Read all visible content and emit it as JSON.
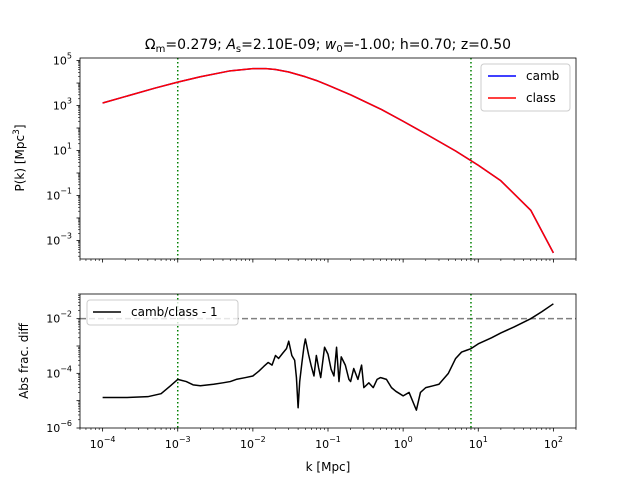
{
  "chart_data": [
    {
      "type": "line",
      "title": "Ω_m=0.279; A_s=2.10E-09; w_0=-1.00; h=0.70; z=0.50",
      "title_parts": {
        "omega": "Ω",
        "omega_sub": "m",
        "omega_val": "=0.279; ",
        "as": "A",
        "as_sub": "s",
        "as_val": "=2.10E-09; ",
        "w": "w",
        "w_sub": "0",
        "w_val": "=-1.00; h=0.70; z=0.50"
      },
      "ylabel": "P(k) [Mpc",
      "ylabel_sup": "3",
      "ylabel_end": "]",
      "xscale": "log",
      "yscale": "log",
      "xlim": [
        5e-05,
        200
      ],
      "ylim": [
        0.00015,
        130000
      ],
      "yticks": [
        {
          "v": 0.001,
          "base": "10",
          "exp": "−3"
        },
        {
          "v": 0.1,
          "base": "10",
          "exp": "−1"
        },
        {
          "v": 10,
          "base": "10",
          "exp": "1"
        },
        {
          "v": 1000,
          "base": "10",
          "exp": "3"
        },
        {
          "v": 100000,
          "base": "10",
          "exp": "5"
        }
      ],
      "vlines": [
        0.001,
        8.0
      ],
      "vline_color": "#008000",
      "legend_placement": "top-right",
      "series": [
        {
          "name": "camb",
          "color": "#0000ff",
          "x": [
            0.0001,
            0.0002,
            0.0005,
            0.001,
            0.002,
            0.005,
            0.01,
            0.015,
            0.02,
            0.03,
            0.05,
            0.07,
            0.1,
            0.2,
            0.5,
            1,
            2,
            5,
            10,
            20,
            50,
            100
          ],
          "y": [
            1300,
            2500,
            6000,
            11000,
            19000,
            35000,
            44000,
            44000,
            40000,
            31000,
            19000,
            13000,
            8000,
            3000,
            700,
            200,
            55,
            9.5,
            2.2,
            0.45,
            0.022,
            0.00028
          ]
        },
        {
          "name": "class",
          "color": "#ff0000",
          "x": [
            0.0001,
            0.0002,
            0.0005,
            0.001,
            0.002,
            0.005,
            0.01,
            0.015,
            0.02,
            0.03,
            0.05,
            0.07,
            0.1,
            0.2,
            0.5,
            1,
            2,
            5,
            10,
            20,
            50,
            100
          ],
          "y": [
            1300,
            2500,
            6000,
            11000,
            19000,
            35000,
            44000,
            44000,
            40000,
            31000,
            19000,
            13000,
            8000,
            3000,
            700,
            200,
            55,
            9.5,
            2.2,
            0.45,
            0.022,
            0.00028
          ]
        }
      ]
    },
    {
      "type": "line",
      "xlabel": "k [Mpc]",
      "ylabel": "Abs frac. diff",
      "xscale": "log",
      "yscale": "log",
      "xlim": [
        5e-05,
        200
      ],
      "ylim": [
        1e-06,
        0.08
      ],
      "xticks": [
        {
          "v": 0.0001,
          "base": "10",
          "exp": "−4"
        },
        {
          "v": 0.001,
          "base": "10",
          "exp": "−3"
        },
        {
          "v": 0.01,
          "base": "10",
          "exp": "−2"
        },
        {
          "v": 0.1,
          "base": "10",
          "exp": "−1"
        },
        {
          "v": 1,
          "base": "10",
          "exp": "0"
        },
        {
          "v": 10,
          "base": "10",
          "exp": "1"
        },
        {
          "v": 100,
          "base": "10",
          "exp": "2"
        }
      ],
      "yticks": [
        {
          "v": 1e-06,
          "base": "10",
          "exp": "−6"
        },
        {
          "v": 0.0001,
          "base": "10",
          "exp": "−4"
        },
        {
          "v": 0.01,
          "base": "10",
          "exp": "−2"
        }
      ],
      "vlines": [
        0.001,
        8.0
      ],
      "vline_color": "#008000",
      "hline": 0.01,
      "hline_color": "#808080",
      "legend_placement": "top-left",
      "series": [
        {
          "name": "camb/class - 1",
          "color": "#000000",
          "x": [
            0.0001,
            0.0002,
            0.0004,
            0.0006,
            0.0008,
            0.001,
            0.0013,
            0.0016,
            0.002,
            0.003,
            0.004,
            0.005,
            0.006,
            0.008,
            0.01,
            0.012,
            0.014,
            0.016,
            0.018,
            0.02,
            0.022,
            0.025,
            0.028,
            0.03,
            0.033,
            0.036,
            0.038,
            0.04,
            0.042,
            0.045,
            0.048,
            0.05,
            0.055,
            0.06,
            0.065,
            0.07,
            0.075,
            0.08,
            0.09,
            0.1,
            0.11,
            0.12,
            0.13,
            0.14,
            0.15,
            0.17,
            0.19,
            0.2,
            0.22,
            0.25,
            0.28,
            0.3,
            0.35,
            0.4,
            0.45,
            0.5,
            0.6,
            0.7,
            0.8,
            0.9,
            1.0,
            1.2,
            1.5,
            1.7,
            2.0,
            2.5,
            3,
            4,
            5,
            6,
            7,
            8,
            10,
            15,
            20,
            30,
            50,
            70,
            100
          ],
          "y": [
            1.3e-05,
            1.3e-05,
            1.4e-05,
            1.8e-05,
            3.5e-05,
            6e-05,
            5e-05,
            3.8e-05,
            3.5e-05,
            4e-05,
            4.5e-05,
            5e-05,
            6e-05,
            7e-05,
            8e-05,
            0.00012,
            0.00018,
            0.00025,
            0.0002,
            0.00045,
            0.00035,
            0.00055,
            0.0008,
            0.0015,
            0.00045,
            0.0003,
            7e-05,
            5.5e-06,
            5e-05,
            0.00025,
            0.001,
            0.0018,
            0.0005,
            0.00018,
            8e-05,
            0.00045,
            0.00016,
            7e-05,
            0.0009,
            0.0005,
            0.00014,
            8e-05,
            0.0009,
            5e-05,
            0.0004,
            0.0002,
            6e-05,
            5e-05,
            0.00015,
            6e-05,
            0.0002,
            3e-05,
            4.5e-05,
            3e-05,
            6e-05,
            7e-05,
            6e-05,
            3e-05,
            2.2e-05,
            1.8e-05,
            1.5e-05,
            2e-05,
            4.5e-06,
            2e-05,
            3e-05,
            3.5e-05,
            4e-05,
            0.0001,
            0.00035,
            0.0006,
            0.0007,
            0.0008,
            0.0012,
            0.002,
            0.003,
            0.005,
            0.01,
            0.018,
            0.035
          ]
        }
      ]
    }
  ]
}
